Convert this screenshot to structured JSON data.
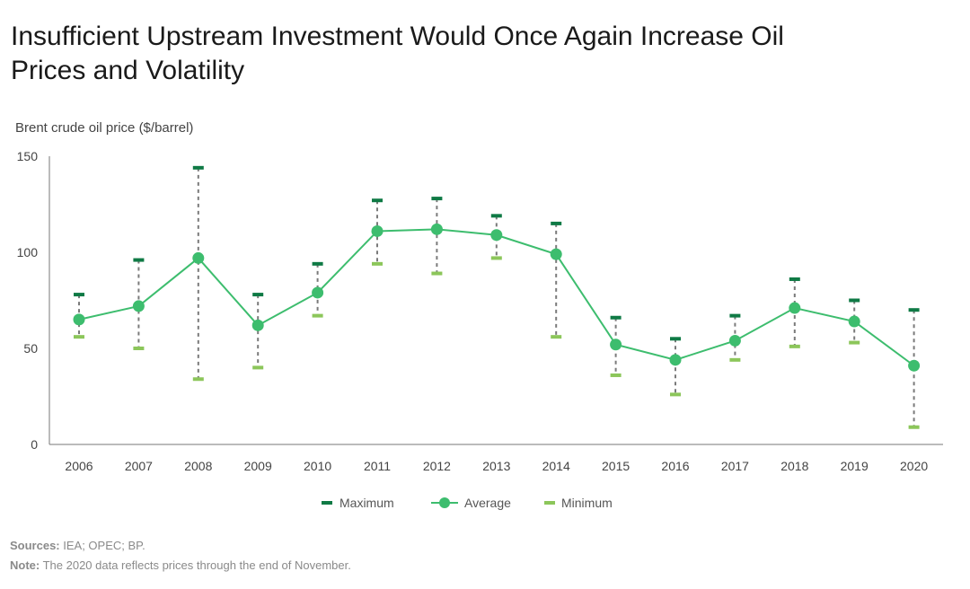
{
  "chart_data": {
    "type": "line",
    "title": "Insufficient Upstream Investment Would Once Again Increase Oil Prices and Volatility",
    "ylabel": "Brent crude oil price ($/barrel)",
    "xlabel": "",
    "ylim": [
      0,
      150
    ],
    "yticks": [
      "0",
      "50",
      "100",
      "150"
    ],
    "categories": [
      "2006",
      "2007",
      "2008",
      "2009",
      "2010",
      "2011",
      "2012",
      "2013",
      "2014",
      "2015",
      "2016",
      "2017",
      "2018",
      "2019",
      "2020"
    ],
    "series": [
      {
        "name": "Maximum",
        "values": [
          78,
          96,
          144,
          78,
          94,
          127,
          128,
          119,
          115,
          66,
          55,
          67,
          86,
          75,
          70
        ]
      },
      {
        "name": "Average",
        "values": [
          65,
          72,
          97,
          62,
          79,
          111,
          112,
          109,
          99,
          52,
          44,
          54,
          71,
          64,
          41
        ]
      },
      {
        "name": "Minimum",
        "values": [
          56,
          50,
          34,
          40,
          67,
          94,
          89,
          97,
          56,
          36,
          26,
          44,
          51,
          53,
          9
        ]
      }
    ],
    "legend_position": "bottom-center",
    "grid": false,
    "colors": {
      "maximum": "#0f7a45",
      "average": "#3dbd6e",
      "minimum": "#8cc65a",
      "range": "#7a7a7a",
      "axis": "#777777"
    }
  },
  "footer": {
    "sources_label": "Sources:",
    "sources_text": " IEA; OPEC; BP.",
    "note_label": "Note:",
    "note_text": " The 2020 data reflects prices through the end of November."
  }
}
